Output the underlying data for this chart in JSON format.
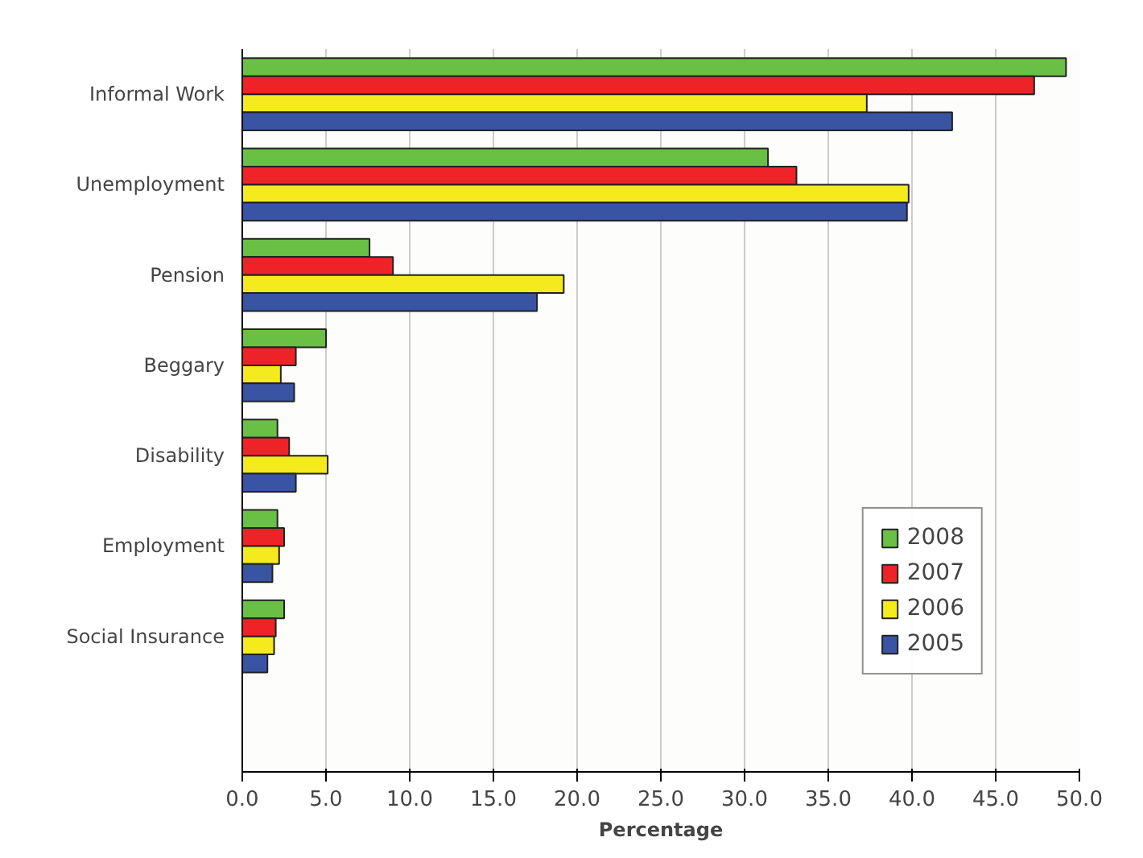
{
  "chart_data": {
    "type": "bar",
    "orientation": "horizontal",
    "xlabel": "Percentage",
    "categories": [
      "Informal Work",
      "Unemployment",
      "Pension",
      "Beggary",
      "Disability",
      "Employment",
      "Social Insurance",
      null
    ],
    "series": [
      {
        "name": "2008",
        "color": "#6abf45",
        "values": [
          49.2,
          31.4,
          7.6,
          5.0,
          2.1,
          2.1,
          2.5,
          null
        ]
      },
      {
        "name": "2007",
        "color": "#ed2328",
        "values": [
          47.3,
          33.1,
          9.0,
          3.2,
          2.8,
          2.5,
          2.0,
          null
        ]
      },
      {
        "name": "2006",
        "color": "#f4ea1e",
        "values": [
          37.3,
          39.8,
          19.2,
          2.3,
          5.1,
          2.2,
          1.9,
          null
        ]
      },
      {
        "name": "2005",
        "color": "#3a54a4",
        "values": [
          42.4,
          39.7,
          17.6,
          3.1,
          3.2,
          1.8,
          1.5,
          null
        ]
      }
    ],
    "xlim": [
      0,
      50
    ],
    "xticks": [
      {
        "value": 0,
        "label": "0.0"
      },
      {
        "value": 5,
        "label": "5.0"
      },
      {
        "value": 10,
        "label": "10.0"
      },
      {
        "value": 15,
        "label": "15.0"
      },
      {
        "value": 20,
        "label": "20.0"
      },
      {
        "value": 25,
        "label": "25.0"
      },
      {
        "value": 30,
        "label": "30.0"
      },
      {
        "value": 35,
        "label": "35.0"
      },
      {
        "value": 40,
        "label": "40.0"
      },
      {
        "value": 45,
        "label": "45.0"
      },
      {
        "value": 50,
        "label": "50.0"
      }
    ],
    "grid": "x",
    "legend": "bottom right"
  }
}
